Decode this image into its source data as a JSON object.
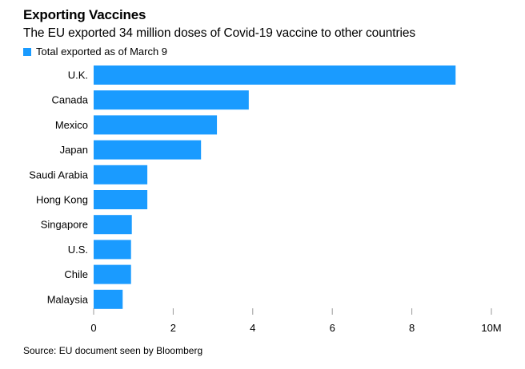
{
  "title": "Exporting Vaccines",
  "subtitle": "The EU exported 34 million doses of Covid-19 vaccine to other countries",
  "source": "Source: EU document seen by Bloomberg",
  "colors": {
    "bar": "#1a9bff",
    "axis": "#9a9a9a"
  },
  "chart_data": {
    "type": "bar",
    "orientation": "horizontal",
    "title": "Exporting Vaccines",
    "subtitle": "The EU exported 34 million doses of Covid-19 vaccine to other countries",
    "legend": {
      "position": "top-left",
      "entries": [
        "Total exported as of March 9"
      ]
    },
    "categories": [
      "U.K.",
      "Canada",
      "Mexico",
      "Japan",
      "Saudi Arabia",
      "Hong Kong",
      "Singapore",
      "U.S.",
      "Chile",
      "Malaysia"
    ],
    "series": [
      {
        "name": "Total exported as of March 9",
        "values": [
          9.1,
          3.9,
          3.1,
          2.7,
          1.35,
          1.35,
          0.96,
          0.94,
          0.94,
          0.73
        ]
      }
    ],
    "xlim": [
      0,
      10
    ],
    "xticks": [
      0,
      2,
      4,
      6,
      8,
      10
    ],
    "xtick_labels": [
      "0",
      "2",
      "4",
      "6",
      "8",
      "10M"
    ],
    "grid": false,
    "xlabel": "",
    "ylabel": ""
  }
}
